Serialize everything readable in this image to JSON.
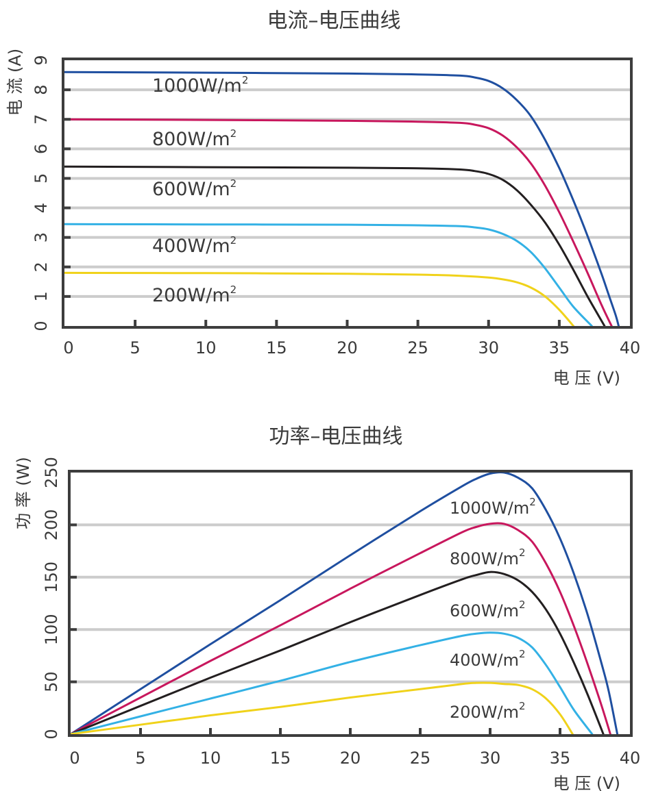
{
  "chart_data": [
    {
      "type": "line",
      "title": "电流–电压曲线",
      "xlabel": "电 压 (V)",
      "ylabel": "电 流 (A)",
      "xlim": [
        0,
        40
      ],
      "ylim": [
        0,
        9
      ],
      "xticks": [
        "0",
        "5",
        "10",
        "15",
        "20",
        "25",
        "30",
        "35",
        "40"
      ],
      "yticks": [
        "0",
        "1",
        "2",
        "3",
        "4",
        "5",
        "6",
        "7",
        "8",
        "9"
      ],
      "grid": "horizontal",
      "series": [
        {
          "name": "1000W/m²",
          "label": "1000W/m",
          "sup": "2",
          "color": "#1f4fa0",
          "x": [
            0,
            10,
            20,
            25,
            28,
            29,
            30,
            31,
            32,
            33,
            34,
            35,
            36,
            37,
            38,
            38.5,
            39,
            39.2
          ],
          "y": [
            8.6,
            8.58,
            8.55,
            8.52,
            8.48,
            8.42,
            8.3,
            8.05,
            7.65,
            7.1,
            6.3,
            5.35,
            4.25,
            3.05,
            1.75,
            1.05,
            0.35,
            0
          ]
        },
        {
          "name": "800W/m²",
          "label": "800W/m",
          "sup": "2",
          "color": "#c8175d",
          "x": [
            0,
            10,
            20,
            25,
            28,
            29,
            30,
            31,
            32,
            33,
            34,
            35,
            36,
            37,
            38,
            38.7
          ],
          "y": [
            7.0,
            6.98,
            6.95,
            6.92,
            6.88,
            6.82,
            6.7,
            6.45,
            6.05,
            5.5,
            4.75,
            3.85,
            2.85,
            1.8,
            0.7,
            0
          ]
        },
        {
          "name": "600W/m²",
          "label": "600W/m",
          "sup": "2",
          "color": "#231f20",
          "x": [
            0,
            10,
            20,
            25,
            28,
            29,
            30,
            31,
            32,
            33,
            34,
            35,
            36,
            37,
            38.2
          ],
          "y": [
            5.4,
            5.38,
            5.36,
            5.34,
            5.3,
            5.25,
            5.15,
            4.95,
            4.6,
            4.1,
            3.5,
            2.75,
            1.9,
            1.0,
            0
          ]
        },
        {
          "name": "400W/m²",
          "label": "400W/m",
          "sup": "2",
          "color": "#33b1e5",
          "x": [
            0,
            10,
            20,
            25,
            28,
            29,
            30,
            31,
            32,
            33,
            34,
            35,
            36,
            37.3
          ],
          "y": [
            3.45,
            3.44,
            3.43,
            3.41,
            3.38,
            3.34,
            3.27,
            3.12,
            2.88,
            2.5,
            1.95,
            1.3,
            0.65,
            0
          ]
        },
        {
          "name": "200W/m²",
          "label": "200W/m",
          "sup": "2",
          "color": "#f0d21a",
          "x": [
            0,
            10,
            20,
            25,
            28,
            30,
            31,
            32,
            33,
            34,
            35,
            36
          ],
          "y": [
            1.8,
            1.79,
            1.77,
            1.74,
            1.7,
            1.64,
            1.58,
            1.48,
            1.3,
            1.0,
            0.55,
            0
          ]
        }
      ]
    },
    {
      "type": "line",
      "title": "功率–电压曲线",
      "xlabel": "电 压 (V)",
      "ylabel": "功 率 (W)",
      "xlim": [
        0,
        40
      ],
      "ylim": [
        0,
        250
      ],
      "xticks": [
        "0",
        "5",
        "10",
        "15",
        "20",
        "25",
        "30",
        "35",
        "40"
      ],
      "yticks": [
        "0",
        "50",
        "100",
        "150",
        "200",
        "250"
      ],
      "grid": "horizontal",
      "series": [
        {
          "name": "1000W/m²",
          "label": "1000W/m",
          "sup": "2",
          "color": "#1f4fa0",
          "x": [
            0,
            5,
            10,
            15,
            20,
            25,
            28,
            29,
            30,
            31,
            32,
            33,
            34,
            35,
            36,
            37,
            38,
            38.5,
            39.1
          ],
          "y": [
            0,
            43,
            86,
            128,
            171,
            213,
            237,
            244,
            249,
            250,
            245,
            235,
            214,
            187,
            153,
            113,
            66,
            40,
            0
          ]
        },
        {
          "name": "800W/m²",
          "label": "800W/m",
          "sup": "2",
          "color": "#c8175d",
          "x": [
            0,
            5,
            10,
            15,
            20,
            25,
            28,
            29,
            30,
            31,
            32,
            33,
            34,
            35,
            36,
            37,
            38,
            38.6
          ],
          "y": [
            0,
            35,
            70,
            104,
            139,
            173,
            193,
            198,
            201,
            201,
            195,
            184,
            163,
            136,
            103,
            66,
            26,
            0
          ]
        },
        {
          "name": "600W/m²",
          "label": "600W/m",
          "sup": "2",
          "color": "#231f20",
          "x": [
            0,
            5,
            10,
            15,
            20,
            25,
            28,
            29,
            30,
            31,
            32,
            33,
            34,
            35,
            36,
            37,
            38.1
          ],
          "y": [
            0,
            27,
            54,
            80,
            107,
            133,
            148,
            152,
            155,
            153,
            147,
            136,
            119,
            96,
            68,
            37,
            0
          ]
        },
        {
          "name": "400W/m²",
          "label": "400W/m",
          "sup": "2",
          "color": "#33b1e5",
          "x": [
            0,
            5,
            10,
            15,
            20,
            25,
            28,
            29,
            30,
            31,
            32,
            33,
            34,
            35,
            36,
            37.3
          ],
          "y": [
            0,
            17,
            34,
            51,
            69,
            85,
            94,
            96,
            97,
            96,
            92,
            83,
            66,
            45,
            23,
            0
          ]
        },
        {
          "name": "200W/m²",
          "label": "200W/m",
          "sup": "2",
          "color": "#f0d21a",
          "x": [
            0,
            5,
            10,
            15,
            20,
            25,
            28,
            29,
            30,
            31,
            32,
            33,
            34,
            35,
            35.9
          ],
          "y": [
            0,
            9,
            18,
            26,
            35,
            43,
            48,
            49,
            49,
            48,
            47,
            43,
            34,
            19,
            0
          ]
        }
      ]
    }
  ]
}
